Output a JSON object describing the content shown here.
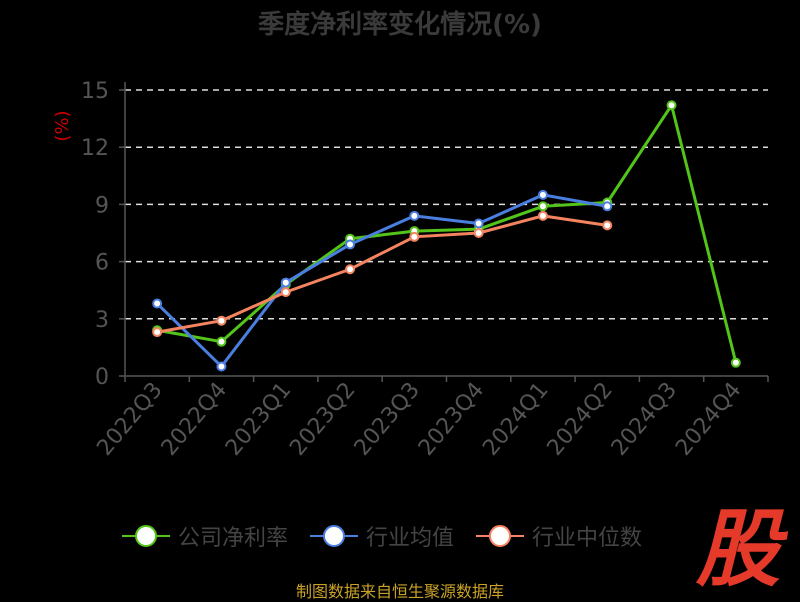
{
  "colors": {
    "company": "#52c41a",
    "industry_avg": "#4a7fe0",
    "industry_median": "#f4845f",
    "grid": "#dddddd",
    "axis_text": "#555555",
    "unit_text": "#cc0000",
    "brand": "#e5392a"
  },
  "source_text": "制图数据来自恒生聚源数据库",
  "brand_char": "股",
  "chart_data": {
    "type": "line",
    "title": "季度净利率变化情况(%)",
    "ylabel": "(%)",
    "ylim": [
      0,
      15
    ],
    "yticks": [
      "0",
      "3",
      "6",
      "9",
      "12",
      "15"
    ],
    "grid": "horizontal dashed",
    "legend_position": "bottom",
    "categories": [
      "2022Q3",
      "2022Q4",
      "2023Q1",
      "2023Q2",
      "2023Q3",
      "2023Q4",
      "2024Q1",
      "2024Q2",
      "2024Q3",
      "2024Q4"
    ],
    "series": [
      {
        "name": "公司净利率",
        "color_key": "company",
        "values": [
          2.4,
          1.8,
          4.8,
          7.2,
          7.6,
          7.7,
          8.9,
          9.1,
          14.2,
          0.7
        ]
      },
      {
        "name": "行业均值",
        "color_key": "industry_avg",
        "values": [
          3.8,
          0.5,
          4.9,
          6.9,
          8.4,
          8.0,
          9.5,
          8.9,
          null,
          null
        ]
      },
      {
        "name": "行业中位数",
        "color_key": "industry_median",
        "values": [
          2.3,
          2.9,
          4.4,
          5.6,
          7.3,
          7.5,
          8.4,
          7.9,
          null,
          null
        ]
      }
    ]
  }
}
